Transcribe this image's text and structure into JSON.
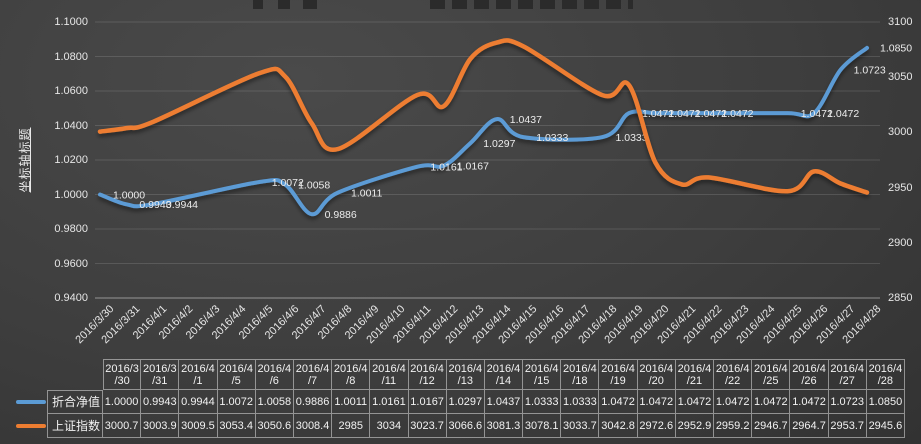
{
  "chart_data": {
    "type": "line",
    "smooth": true,
    "grid": true,
    "legend_position": "data-table-left",
    "categories": [
      "2016/3/30",
      "2016/3/31",
      "2016/4/1",
      "2016/4/5",
      "2016/4/6",
      "2016/4/7",
      "2016/4/8",
      "2016/4/11",
      "2016/4/12",
      "2016/4/13",
      "2016/4/14",
      "2016/4/15",
      "2016/4/18",
      "2016/4/19",
      "2016/4/20",
      "2016/4/21",
      "2016/4/22",
      "2016/4/25",
      "2016/4/26",
      "2016/4/27",
      "2016/4/28"
    ],
    "series": [
      {
        "name": "折合净值",
        "axis": "left",
        "color": "#5B9BD5",
        "values": [
          1.0,
          0.9943,
          0.9944,
          1.0072,
          1.0058,
          0.9886,
          1.0011,
          1.0161,
          1.0167,
          1.0297,
          1.0437,
          1.0333,
          1.0333,
          1.0472,
          1.0472,
          1.0472,
          1.0472,
          1.0472,
          1.0472,
          1.0723,
          1.085
        ],
        "labels": [
          "1.0000",
          "0.9943",
          "0.9944",
          "1.0072",
          "1.0058",
          "0.9886",
          "1.0011",
          "1.0161",
          "1.0167",
          "1.0297",
          "1.0437",
          "1.0333",
          "1.0333",
          "1.0472",
          "1.0472",
          "1.0472",
          "1.0472",
          "1.0472",
          "1.0472",
          "1.0723",
          "1.0850"
        ],
        "show_labels": true
      },
      {
        "name": "上证指数",
        "axis": "right",
        "color": "#ED7D31",
        "values": [
          3000.7,
          3003.9,
          3009.5,
          3053.4,
          3050.6,
          3008.4,
          2985,
          3034,
          3023.7,
          3066.6,
          3081.3,
          3078.1,
          3033.7,
          3042.8,
          2972.6,
          2952.9,
          2959.2,
          2946.7,
          2964.7,
          2953.7,
          2945.6
        ],
        "show_labels": false
      }
    ],
    "left_axis": {
      "title": "坐标轴标题",
      "min": 0.94,
      "max": 1.1,
      "ticks": [
        "1.1000",
        "1.0800",
        "1.0600",
        "1.0400",
        "1.0200",
        "1.0000",
        "0.9800",
        "0.9600",
        "0.9400"
      ]
    },
    "right_axis": {
      "min": 2850,
      "max": 3100,
      "ticks": [
        "3100",
        "3050",
        "3000",
        "2950",
        "2900",
        "2850"
      ]
    },
    "x_axis": {
      "ticks": [
        "2016/3/30",
        "2016/3/31",
        "2016/4/1",
        "2016/4/2",
        "2016/4/3",
        "2016/4/4",
        "2016/4/5",
        "2016/4/6",
        "2016/4/7",
        "2016/4/8",
        "2016/4/9",
        "2016/4/10",
        "2016/4/11",
        "2016/4/12",
        "2016/4/13",
        "2016/4/14",
        "2016/4/15",
        "2016/4/16",
        "2016/4/17",
        "2016/4/18",
        "2016/4/19",
        "2016/4/20",
        "2016/4/21",
        "2016/4/22",
        "2016/4/23",
        "2016/4/24",
        "2016/4/25",
        "2016/4/26",
        "2016/4/27",
        "2016/4/28"
      ]
    }
  },
  "table": {
    "columns": [
      "2016/3/30",
      "2016/3/31",
      "2016/4/1",
      "2016/4/5",
      "2016/4/6",
      "2016/4/7",
      "2016/4/8",
      "2016/4/11",
      "2016/4/12",
      "2016/4/13",
      "2016/4/14",
      "2016/4/15",
      "2016/4/18",
      "2016/4/19",
      "2016/4/20",
      "2016/4/21",
      "2016/4/22",
      "2016/4/25",
      "2016/4/26",
      "2016/4/27",
      "2016/4/28"
    ],
    "rows": [
      {
        "label": "折合净值",
        "key_color": "#5B9BD5",
        "values": [
          "1.0000",
          "0.9943",
          "0.9944",
          "1.0072",
          "1.0058",
          "0.9886",
          "1.0011",
          "1.0161",
          "1.0167",
          "1.0297",
          "1.0437",
          "1.0333",
          "1.0333",
          "1.0472",
          "1.0472",
          "1.0472",
          "1.0472",
          "1.0472",
          "1.0472",
          "1.0723",
          "1.0850"
        ]
      },
      {
        "label": "上证指数",
        "key_color": "#ED7D31",
        "values": [
          "3000.7",
          "3003.9",
          "3009.5",
          "3053.4",
          "3050.6",
          "3008.4",
          "2985",
          "3034",
          "3023.7",
          "3066.6",
          "3081.3",
          "3078.1",
          "3033.7",
          "3042.8",
          "2972.6",
          "2952.9",
          "2959.2",
          "2946.7",
          "2964.7",
          "2953.7",
          "2945.6"
        ]
      }
    ]
  },
  "colors": {
    "background": "#3e3e3e",
    "series_nav": "#5B9BD5",
    "series_index": "#ED7D31",
    "gridline": "rgba(255,255,255,0.13)",
    "axis_text": "#e6e6e6",
    "table_border": "rgba(222,222,222,0.55)"
  }
}
